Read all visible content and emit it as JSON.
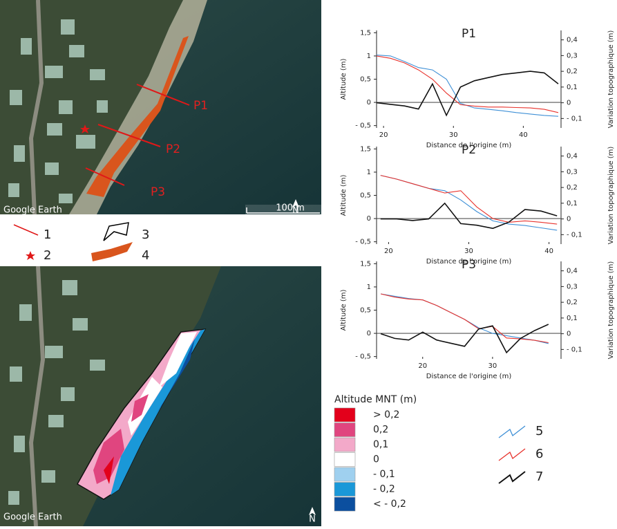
{
  "maps": {
    "top": {
      "credit": "Google Earth",
      "north": "N",
      "scale": "100 m",
      "profiles": [
        "P1",
        "P2",
        "P3"
      ]
    },
    "bottom": {
      "credit": "Google Earth",
      "north": "N"
    }
  },
  "map_legend": [
    "1",
    "2",
    "3",
    "4"
  ],
  "mnt_legend": {
    "title": "Altitude MNT (m)",
    "classes": [
      {
        "label": "> 0,2",
        "color": "#e3001b"
      },
      {
        "label": "0,2",
        "color": "#e0457f"
      },
      {
        "label": "0,1",
        "color": "#f3a9c9"
      },
      {
        "label": "0",
        "color": "#ffffff"
      },
      {
        "label": "- 0,1",
        "color": "#9fd0ef"
      },
      {
        "label": "- 0,2",
        "color": "#1a98d8"
      },
      {
        "label": "< - 0,2",
        "color": "#0b4f9f"
      }
    ]
  },
  "chart_data": [
    {
      "type": "line",
      "title": "P1",
      "x_label": "Distance de l'origine (m)",
      "y_label": "Altitude (m)",
      "y2_label": "Variation topographique (m)",
      "x": [
        19,
        21,
        23,
        25,
        27,
        29,
        31,
        33,
        35,
        37,
        39,
        41,
        43,
        45
      ],
      "xlim": [
        19,
        45.4
      ],
      "xticks": [
        20,
        30,
        40
      ],
      "ylim": [
        -0.55,
        1.55
      ],
      "yticks": [
        {
          "value": 1.5,
          "label": "1,5"
        },
        1,
        {
          "value": 0.5,
          "label": "0,5"
        },
        0,
        {
          "value": -0.5,
          "label": "- 0,5"
        }
      ],
      "y2lim": [
        -0.16,
        0.46
      ],
      "y2ticks": [
        {
          "value": 0.4,
          "label": "0,4"
        },
        {
          "value": 0.3,
          "label": "0,3"
        },
        {
          "value": 0.2,
          "label": "0,2"
        },
        {
          "value": 0.1,
          "label": "0,1"
        },
        0,
        {
          "value": -0.1,
          "label": "- 0,1"
        }
      ],
      "series": [
        {
          "name": "5",
          "color": "#3d8fd6",
          "values": [
            1.02,
            1.0,
            0.88,
            0.75,
            0.7,
            0.5,
            -0.02,
            -0.12,
            -0.15,
            -0.18,
            -0.22,
            -0.25,
            -0.28,
            -0.3
          ]
        },
        {
          "name": "6",
          "color": "#e8312b",
          "values": [
            1.0,
            0.95,
            0.85,
            0.7,
            0.5,
            0.2,
            -0.05,
            -0.08,
            -0.1,
            -0.1,
            -0.11,
            -0.12,
            -0.15,
            -0.22
          ]
        },
        {
          "name": "7",
          "color": "#111111",
          "axis": "y2",
          "values": [
            0,
            -0.01,
            -0.02,
            -0.04,
            0.12,
            -0.08,
            0.1,
            0.14,
            0.16,
            0.18,
            0.19,
            0.2,
            0.19,
            0.12
          ]
        }
      ]
    },
    {
      "type": "line",
      "title": "P2",
      "x_label": "Distance de l'origine (m)",
      "y_label": "Altitude (m)",
      "y2_label": "Variation topographique (m)",
      "x": [
        19,
        21,
        23,
        25,
        27,
        29,
        31,
        33,
        35,
        37,
        39,
        41
      ],
      "xlim": [
        18.5,
        41.5
      ],
      "xticks": [
        20,
        30,
        40
      ],
      "ylim": [
        -0.55,
        1.55
      ],
      "yticks": [
        {
          "value": 1.5,
          "label": "1,5"
        },
        1,
        {
          "value": 0.5,
          "label": "0,5"
        },
        0,
        {
          "value": -0.5,
          "label": "- 0,5"
        }
      ],
      "y2lim": [
        -0.16,
        0.46
      ],
      "y2ticks": [
        {
          "value": 0.4,
          "label": "0,4"
        },
        {
          "value": 0.3,
          "label": "0,3"
        },
        {
          "value": 0.2,
          "label": "0,2"
        },
        {
          "value": 0.1,
          "label": "0,1"
        },
        0,
        {
          "value": -0.1,
          "label": "- 0,1"
        }
      ],
      "series": [
        {
          "color": "#3d8fd6",
          "values": [
            0.93,
            0.85,
            0.75,
            0.65,
            0.6,
            0.4,
            0.15,
            -0.05,
            -0.12,
            -0.15,
            -0.2,
            -0.25
          ]
        },
        {
          "color": "#e8312b",
          "values": [
            0.93,
            0.85,
            0.75,
            0.65,
            0.55,
            0.6,
            0.25,
            0.0,
            -0.08,
            -0.05,
            -0.08,
            -0.12
          ]
        },
        {
          "color": "#111111",
          "axis": "y2",
          "values": [
            0,
            0,
            -0.01,
            0.0,
            0.1,
            -0.03,
            -0.04,
            -0.06,
            -0.02,
            0.06,
            0.05,
            0.02
          ]
        }
      ]
    },
    {
      "type": "line",
      "title": "P3",
      "x_label": "Distance de l'origine (m)",
      "y_label": "Altitude  (m)",
      "y2_label": "Variation topographique (m)",
      "x": [
        14,
        16,
        18,
        20,
        22,
        24,
        26,
        28,
        30,
        32,
        34,
        36,
        38
      ],
      "xlim": [
        13.4,
        39.8
      ],
      "xticks": [
        20,
        30
      ],
      "ylim": [
        -0.55,
        1.55
      ],
      "yticks": [
        {
          "value": 1.5,
          "label": "1,5"
        },
        1,
        {
          "value": 0.5,
          "label": "0,5"
        },
        0,
        {
          "value": -0.5,
          "label": "- 0,5"
        }
      ],
      "y2lim": [
        -0.16,
        0.46
      ],
      "y2ticks": [
        {
          "value": 0.4,
          "label": "0,4"
        },
        {
          "value": 0.3,
          "label": "0,3"
        },
        {
          "value": 0.2,
          "label": "0,2"
        },
        {
          "value": 0.1,
          "label": "0,1"
        },
        0,
        {
          "value": -0.1,
          "label": "- 0,1"
        }
      ],
      "series": [
        {
          "color": "#3d8fd6",
          "values": [
            0.85,
            0.8,
            0.75,
            0.72,
            0.6,
            0.45,
            0.3,
            0.12,
            0.0,
            -0.05,
            -0.1,
            -0.15,
            -0.22
          ]
        },
        {
          "color": "#e8312b",
          "values": [
            0.85,
            0.78,
            0.74,
            0.72,
            0.6,
            0.45,
            0.3,
            0.1,
            0.15,
            -0.1,
            -0.12,
            -0.15,
            -0.2
          ]
        },
        {
          "color": "#111111",
          "axis": "y2",
          "values": [
            0,
            -0.03,
            -0.04,
            0.01,
            -0.04,
            -0.06,
            -0.08,
            0.03,
            0.05,
            -0.12,
            -0.03,
            0.02,
            0.06
          ]
        }
      ]
    }
  ]
}
